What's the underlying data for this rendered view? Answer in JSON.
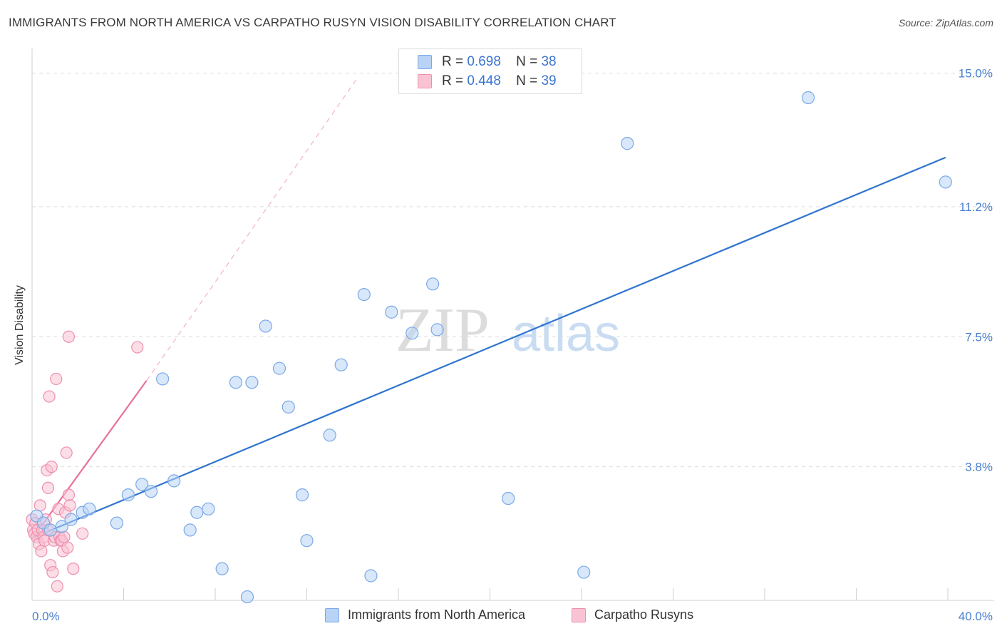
{
  "header": {
    "title": "IMMIGRANTS FROM NORTH AMERICA VS CARPATHO RUSYN VISION DISABILITY CORRELATION CHART",
    "source": "Source: ZipAtlas.com"
  },
  "colors": {
    "blue_fill": "#b8d3f5",
    "blue_stroke": "#7aa9e6",
    "blue_line": "#2f74d0",
    "pink_fill": "#f9c3d4",
    "pink_stroke": "#ee8fae",
    "pink_line": "#e8709a",
    "grid": "#dcdcdc",
    "tick_text": "#4a7fcf"
  },
  "legend_top": {
    "rows": [
      {
        "r_label": "R =",
        "r_value": "0.698",
        "n_label": "N =",
        "n_value": "38"
      },
      {
        "r_label": "R =",
        "r_value": "0.448",
        "n_label": "N =",
        "n_value": "39"
      }
    ]
  },
  "legend_bottom": {
    "items": [
      "Immigrants from North America",
      "Carpatho Rusyns"
    ]
  },
  "watermark": {
    "zip": "ZIP",
    "atlas": "atlas"
  },
  "chart_data": {
    "type": "scatter",
    "title": "IMMIGRANTS FROM NORTH AMERICA VS CARPATHO RUSYN VISION DISABILITY CORRELATION CHART",
    "xlabel": "",
    "ylabel": "Vision Disability",
    "xlim": [
      0,
      40
    ],
    "ylim": [
      0,
      15.7
    ],
    "x_tick_labels": [
      "0.0%",
      "40.0%"
    ],
    "y_ticks": [
      3.8,
      7.5,
      11.2,
      15.0
    ],
    "y_tick_labels": [
      "3.8%",
      "7.5%",
      "11.2%",
      "15.0%"
    ],
    "grid": true,
    "legend_position": "top-center",
    "series": [
      {
        "name": "Immigrants from North America",
        "R": 0.698,
        "N": 38,
        "points": [
          [
            0.2,
            2.4
          ],
          [
            0.5,
            2.2
          ],
          [
            0.8,
            2.0
          ],
          [
            1.3,
            2.1
          ],
          [
            1.7,
            2.3
          ],
          [
            2.2,
            2.5
          ],
          [
            2.5,
            2.6
          ],
          [
            3.7,
            2.2
          ],
          [
            4.2,
            3.0
          ],
          [
            4.8,
            3.3
          ],
          [
            5.2,
            3.1
          ],
          [
            5.7,
            6.3
          ],
          [
            6.2,
            3.4
          ],
          [
            6.9,
            2.0
          ],
          [
            7.2,
            2.5
          ],
          [
            7.7,
            2.6
          ],
          [
            8.3,
            0.9
          ],
          [
            8.9,
            6.2
          ],
          [
            9.4,
            0.1
          ],
          [
            9.6,
            6.2
          ],
          [
            10.2,
            7.8
          ],
          [
            10.8,
            6.6
          ],
          [
            11.2,
            5.5
          ],
          [
            11.8,
            3.0
          ],
          [
            12.0,
            1.7
          ],
          [
            13.0,
            4.7
          ],
          [
            13.5,
            6.7
          ],
          [
            14.5,
            8.7
          ],
          [
            14.8,
            0.7
          ],
          [
            15.7,
            8.2
          ],
          [
            16.6,
            7.6
          ],
          [
            17.5,
            9.0
          ],
          [
            17.7,
            7.7
          ],
          [
            20.8,
            2.9
          ],
          [
            24.1,
            0.8
          ],
          [
            26.0,
            13.0
          ],
          [
            33.9,
            14.3
          ],
          [
            39.9,
            11.9
          ]
        ],
        "trend": {
          "x0": 0.1,
          "y0": 1.8,
          "x1": 39.9,
          "y1": 12.6
        }
      },
      {
        "name": "Carpatho Rusyns",
        "R": 0.448,
        "N": 39,
        "points": [
          [
            0.0,
            2.3
          ],
          [
            0.05,
            2.0
          ],
          [
            0.1,
            1.9
          ],
          [
            0.15,
            2.2
          ],
          [
            0.2,
            1.8
          ],
          [
            0.25,
            2.0
          ],
          [
            0.3,
            1.6
          ],
          [
            0.35,
            2.7
          ],
          [
            0.4,
            1.4
          ],
          [
            0.45,
            2.0
          ],
          [
            0.5,
            1.8
          ],
          [
            0.55,
            1.7
          ],
          [
            0.6,
            2.3
          ],
          [
            0.65,
            3.7
          ],
          [
            0.7,
            3.2
          ],
          [
            0.7,
            2.0
          ],
          [
            0.75,
            5.8
          ],
          [
            0.8,
            1.0
          ],
          [
            0.85,
            3.8
          ],
          [
            0.9,
            0.8
          ],
          [
            0.95,
            1.7
          ],
          [
            1.0,
            1.8
          ],
          [
            1.05,
            6.3
          ],
          [
            1.1,
            0.4
          ],
          [
            1.15,
            2.6
          ],
          [
            1.2,
            1.8
          ],
          [
            1.25,
            1.7
          ],
          [
            1.3,
            1.7
          ],
          [
            1.35,
            1.4
          ],
          [
            1.4,
            1.8
          ],
          [
            1.45,
            2.5
          ],
          [
            1.5,
            4.2
          ],
          [
            1.55,
            1.5
          ],
          [
            1.6,
            3.0
          ],
          [
            1.65,
            2.7
          ],
          [
            1.6,
            7.5
          ],
          [
            2.2,
            1.9
          ],
          [
            1.8,
            0.9
          ],
          [
            4.6,
            7.2
          ]
        ],
        "trend": {
          "x0": 0.0,
          "y0": 1.75,
          "x1": 5.0,
          "y1": 6.25
        },
        "trend_extension": {
          "x0": 5.0,
          "y0": 6.25,
          "x1": 14.2,
          "y1": 14.85
        }
      }
    ]
  }
}
